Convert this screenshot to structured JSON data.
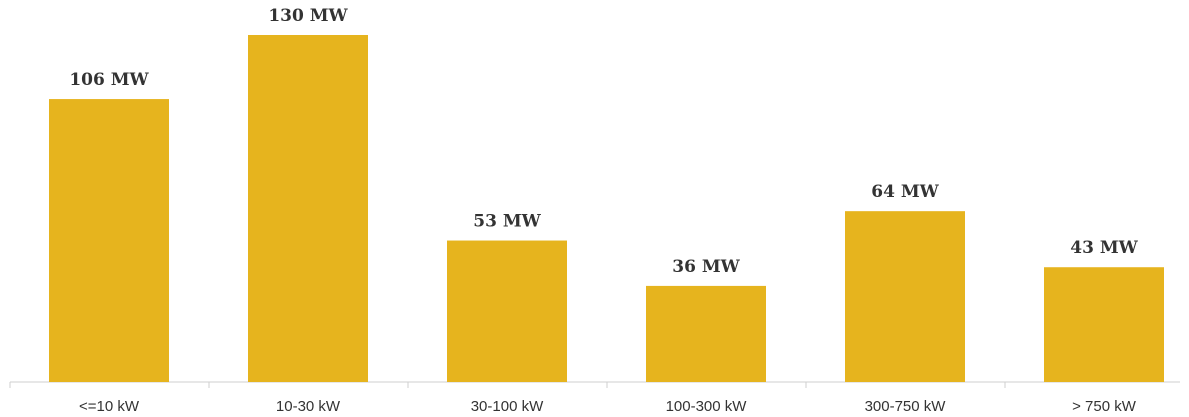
{
  "chart_data": {
    "type": "bar",
    "categories": [
      "<=10 kW",
      "10-30 kW",
      "30-100 kW",
      "100-300 kW",
      "300-750 kW",
      "> 750 kW"
    ],
    "values": [
      106,
      130,
      53,
      36,
      64,
      43
    ],
    "value_labels": [
      "106 MW",
      "130 MW",
      "53 MW",
      "36 MW",
      "64 MW",
      "43 MW"
    ],
    "title": "",
    "xlabel": "",
    "ylabel": "",
    "ylim": [
      0,
      130
    ],
    "grid": false,
    "legend": "none",
    "colors": {
      "bar": "#E6B41E",
      "text": "#333333",
      "axis": "#cfcfcf"
    }
  }
}
